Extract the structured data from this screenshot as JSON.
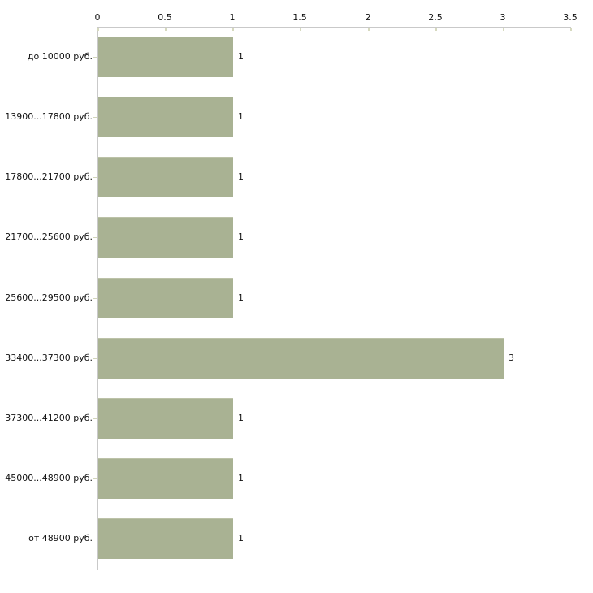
{
  "chart_data": {
    "type": "bar",
    "orientation": "horizontal",
    "title": "",
    "categories": [
      "до 10000 руб.",
      "13900...17800 руб.",
      "17800...21700 руб.",
      "21700...25600 руб.",
      "25600...29500 руб.",
      "33400...37300 руб.",
      "37300...41200 руб.",
      "45000...48900 руб.",
      "от 48900 руб."
    ],
    "values": [
      1,
      1,
      1,
      1,
      1,
      3,
      1,
      1,
      1
    ],
    "value_labels": [
      "1",
      "1",
      "1",
      "1",
      "1",
      "3",
      "1",
      "1",
      "1"
    ],
    "x_ticks": [
      0,
      0.5,
      1,
      1.5,
      2,
      2.5,
      3,
      3.5
    ],
    "x_tick_labels": [
      "0",
      "0.5",
      "1",
      "1.5",
      "2",
      "2.5",
      "3",
      "3.5"
    ],
    "xlim": [
      0,
      3.5
    ],
    "xlabel": "",
    "ylabel": "",
    "grid": false,
    "legend": null,
    "axis_position": "top",
    "colors": {
      "bar": "#a9b293",
      "axis_line": "#c9c9c9",
      "tick": "#d6d9bf",
      "text": "#111111",
      "background": "#ffffff"
    }
  }
}
